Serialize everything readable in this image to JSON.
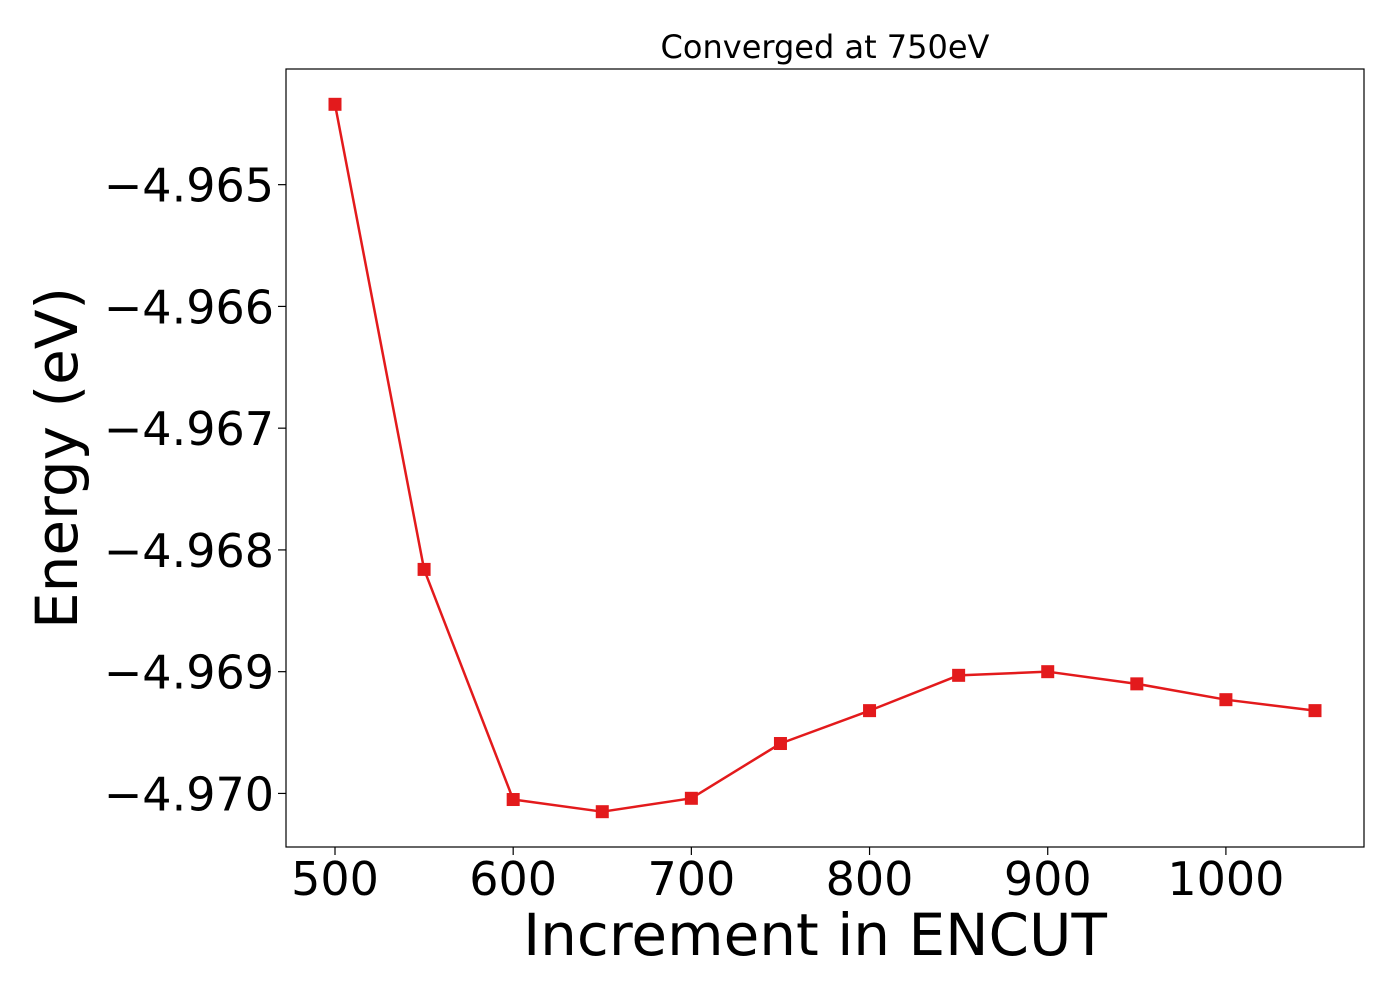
{
  "chart_data": {
    "type": "line",
    "title": "Converged at 750eV",
    "xlabel": "Increment in ENCUT",
    "ylabel": "Energy (eV)",
    "x": [
      500,
      550,
      600,
      650,
      700,
      750,
      800,
      850,
      900,
      950,
      1000,
      1050
    ],
    "series": [
      {
        "values": [
          -4.96434,
          -4.96816,
          -4.97005,
          -4.97015,
          -4.97004,
          -4.96959,
          -4.96932,
          -4.96903,
          -4.969,
          -4.9691,
          -4.96923,
          -4.96932
        ],
        "color": "#e31a1c",
        "marker": "square"
      }
    ],
    "xlim": [
      472.5,
      1077.5
    ],
    "ylim": [
      -4.97044,
      -4.96405
    ],
    "xticks": [
      500,
      600,
      700,
      800,
      900,
      1000
    ],
    "xtick_labels": [
      "500",
      "600",
      "700",
      "800",
      "900",
      "1000"
    ],
    "yticks": [
      -4.965,
      -4.966,
      -4.967,
      -4.968,
      -4.969,
      -4.97
    ],
    "ytick_labels": [
      "−4.965",
      "−4.966",
      "−4.967",
      "−4.968",
      "−4.969",
      "−4.970"
    ],
    "grid": false,
    "legend": "none"
  }
}
